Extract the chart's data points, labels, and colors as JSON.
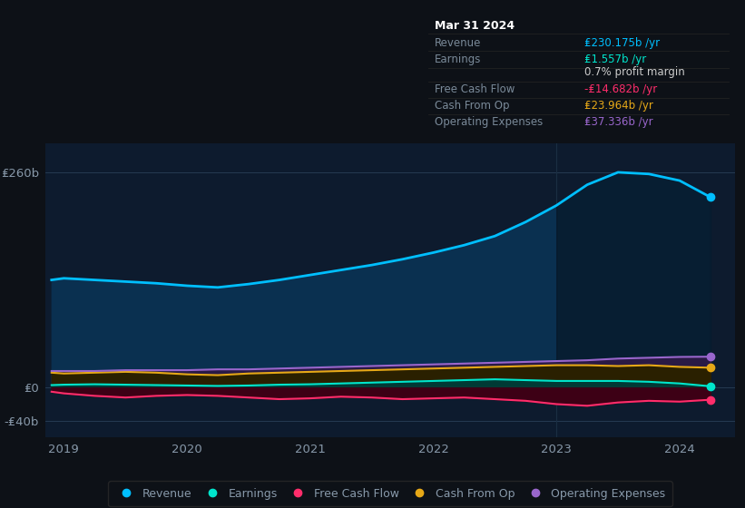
{
  "bg_color": "#0d1117",
  "plot_bg_color": "#0d1b2e",
  "grid_color": "#253a52",
  "text_color": "#8899aa",
  "title_color": "#ffffff",
  "years_x": [
    2018.9,
    2019.0,
    2019.25,
    2019.5,
    2019.75,
    2020.0,
    2020.25,
    2020.5,
    2020.75,
    2021.0,
    2021.25,
    2021.5,
    2021.75,
    2022.0,
    2022.25,
    2022.5,
    2022.75,
    2023.0,
    2023.25,
    2023.5,
    2023.75,
    2024.0,
    2024.25
  ],
  "revenue": [
    130,
    132,
    130,
    128,
    126,
    123,
    121,
    125,
    130,
    136,
    142,
    148,
    155,
    163,
    172,
    183,
    200,
    220,
    245,
    260,
    258,
    250,
    230
  ],
  "earnings": [
    3,
    3.5,
    4,
    3.5,
    3,
    2.5,
    2,
    2.5,
    3.5,
    4,
    5,
    6,
    7,
    8,
    9,
    10,
    9,
    8,
    8,
    8,
    7,
    5,
    1.6
  ],
  "free_cash_flow": [
    -5,
    -7,
    -10,
    -12,
    -10,
    -9,
    -10,
    -12,
    -14,
    -13,
    -11,
    -12,
    -14,
    -13,
    -12,
    -14,
    -16,
    -20,
    -22,
    -18,
    -16,
    -17,
    -14.7
  ],
  "cash_from_op": [
    18,
    17,
    18,
    19,
    18,
    16,
    15,
    17,
    18,
    19,
    20,
    21,
    22,
    23,
    24,
    25,
    26,
    27,
    27,
    26,
    27,
    25,
    24
  ],
  "operating_expenses": [
    20,
    20,
    20,
    21,
    21,
    21,
    22,
    22,
    23,
    24,
    25,
    26,
    27,
    28,
    29,
    30,
    31,
    32,
    33,
    35,
    36,
    37,
    37.3
  ],
  "revenue_color": "#00bfff",
  "earnings_color": "#00e5cc",
  "free_cash_flow_color": "#ff2d6b",
  "cash_from_op_color": "#e6a817",
  "operating_expenses_color": "#9966cc",
  "revenue_fill_color": "#0a3050",
  "earnings_fill_color": "#003a35",
  "fcf_fill_color": "#3d0015",
  "cop_fill_color": "#2a2000",
  "opex_fill_color": "#2a1a45",
  "x_ticks": [
    2019,
    2020,
    2021,
    2022,
    2023,
    2024
  ],
  "x_tick_labels": [
    "2019",
    "2020",
    "2021",
    "2022",
    "2023",
    "2024"
  ],
  "y_ticks": [
    -40,
    0,
    260
  ],
  "y_tick_labels": [
    "-₤40b",
    "₤0",
    "₤260b"
  ],
  "ylim": [
    -60,
    295
  ],
  "xlim": [
    2018.85,
    2024.45
  ],
  "tooltip_date": "Mar 31 2024",
  "tooltip_revenue_label": "Revenue",
  "tooltip_revenue_value": "₤230.175b /yr",
  "tooltip_earnings_label": "Earnings",
  "tooltip_earnings_value": "₤1.557b /yr",
  "tooltip_margin_value": "0.7%",
  "tooltip_margin_text": " profit margin",
  "tooltip_fcf_label": "Free Cash Flow",
  "tooltip_fcf_value": "-₤14.682b /yr",
  "tooltip_cop_label": "Cash From Op",
  "tooltip_cop_value": "₤23.964b /yr",
  "tooltip_opex_label": "Operating Expenses",
  "tooltip_opex_value": "₤37.336b /yr",
  "legend_labels": [
    "Revenue",
    "Earnings",
    "Free Cash Flow",
    "Cash From Op",
    "Operating Expenses"
  ],
  "legend_colors": [
    "#00bfff",
    "#00e5cc",
    "#ff2d6b",
    "#e6a817",
    "#9966cc"
  ],
  "shade_start_x": 2023.0,
  "highlight_dot_x": 2024.25,
  "highlight_dot_revenue": 230,
  "highlight_dot_earnings": 1.6,
  "highlight_dot_fcf": -14.7,
  "highlight_dot_cop": 24,
  "highlight_dot_opex": 37.3
}
